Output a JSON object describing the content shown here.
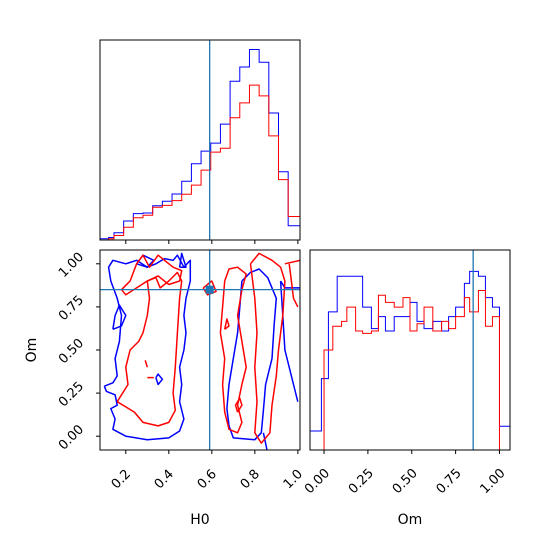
{
  "chart_data": [
    {
      "panel": "H0 marginal",
      "type": "histogram",
      "x_range": [
        0.08,
        1.01
      ],
      "truth": 0.59,
      "series": [
        {
          "color": "#0000ff",
          "x": [
            0.08,
            0.12,
            0.145,
            0.19,
            0.235,
            0.28,
            0.325,
            0.37,
            0.415,
            0.46,
            0.505,
            0.55,
            0.595,
            0.64,
            0.685,
            0.73,
            0.775,
            0.82,
            0.865,
            0.91,
            0.955,
            1.01
          ],
          "y": [
            0.4,
            0.8,
            2.3,
            6.0,
            8.3,
            8.5,
            10.8,
            12.2,
            14.5,
            18.5,
            24.0,
            28.0,
            30.5,
            36.5,
            50.0,
            54.5,
            60.0,
            56.0,
            40.0,
            21.5,
            4.5
          ]
        },
        {
          "color": "#ff0000",
          "x": [
            0.08,
            0.12,
            0.145,
            0.19,
            0.235,
            0.28,
            0.325,
            0.37,
            0.415,
            0.46,
            0.505,
            0.55,
            0.595,
            0.64,
            0.685,
            0.73,
            0.775,
            0.82,
            0.865,
            0.91,
            0.955,
            1.01
          ],
          "y": [
            0.0,
            0.4,
            1.4,
            4.0,
            7.0,
            7.8,
            10.3,
            10.9,
            12.4,
            14.4,
            17.3,
            22.0,
            27.7,
            28.9,
            38.5,
            43.2,
            48.8,
            45.4,
            32.8,
            19.0,
            7.4
          ]
        }
      ]
    },
    {
      "panel": "H0 vs Om",
      "type": "contour",
      "x_range": [
        0.08,
        1.01
      ],
      "y_range": [
        -0.08,
        1.08
      ],
      "truth": {
        "x": 0.59,
        "y": 0.85
      },
      "series": [
        {
          "color": "#0000ff",
          "contours": [
            [
              [
                0.1,
                0.29
              ],
              [
                0.14,
                0.31
              ],
              [
                0.16,
                0.35
              ],
              [
                0.15,
                0.45
              ],
              [
                0.17,
                0.55
              ],
              [
                0.18,
                0.7
              ],
              [
                0.16,
                0.8
              ],
              [
                0.13,
                0.9
              ],
              [
                0.12,
                0.98
              ],
              [
                0.14,
                1.02
              ],
              [
                0.2,
                1.0
              ],
              [
                0.25,
                1.02
              ],
              [
                0.3,
                0.98
              ],
              [
                0.34,
                1.0
              ],
              [
                0.38,
                1.03
              ],
              [
                0.42,
                1.02
              ],
              [
                0.44,
                1.05
              ],
              [
                0.47,
                0.98
              ],
              [
                0.5,
                1.02
              ],
              [
                0.5,
                0.9
              ],
              [
                0.48,
                0.8
              ],
              [
                0.47,
                0.7
              ],
              [
                0.48,
                0.6
              ],
              [
                0.47,
                0.5
              ],
              [
                0.45,
                0.4
              ],
              [
                0.46,
                0.3
              ],
              [
                0.45,
                0.2
              ],
              [
                0.47,
                0.1
              ],
              [
                0.45,
                0.03
              ],
              [
                0.4,
                -0.01
              ],
              [
                0.3,
                -0.02
              ],
              [
                0.2,
                0.0
              ],
              [
                0.14,
                0.04
              ],
              [
                0.15,
                0.1
              ],
              [
                0.13,
                0.16
              ],
              [
                0.16,
                0.18
              ],
              [
                0.15,
                0.24
              ],
              [
                0.11,
                0.26
              ],
              [
                0.1,
                0.29
              ]
            ],
            [
              [
                0.14,
                0.62
              ],
              [
                0.18,
                0.64
              ],
              [
                0.2,
                0.7
              ],
              [
                0.17,
                0.76
              ],
              [
                0.15,
                0.7
              ],
              [
                0.14,
                0.62
              ]
            ],
            [
              [
                0.34,
                0.34
              ],
              [
                0.35,
                0.3
              ],
              [
                0.37,
                0.33
              ],
              [
                0.35,
                0.36
              ],
              [
                0.34,
                0.34
              ]
            ],
            [
              [
                0.25,
                1.0
              ],
              [
                0.28,
                1.05
              ],
              [
                0.33,
                1.02
              ],
              [
                0.3,
                0.98
              ],
              [
                0.25,
                1.0
              ]
            ],
            [
              [
                0.45,
                0.98
              ],
              [
                0.46,
                1.06
              ],
              [
                0.48,
                0.98
              ],
              [
                0.45,
                0.98
              ]
            ],
            [
              [
                0.74,
                0.9
              ],
              [
                0.78,
                0.95
              ],
              [
                0.82,
                0.97
              ],
              [
                0.86,
                0.92
              ],
              [
                0.9,
                0.8
              ],
              [
                0.89,
                0.65
              ],
              [
                0.88,
                0.45
              ],
              [
                0.85,
                0.3
              ],
              [
                0.84,
                0.15
              ],
              [
                0.83,
                0.02
              ],
              [
                0.8,
                -0.02
              ],
              [
                0.7,
                -0.01
              ],
              [
                0.68,
                0.06
              ],
              [
                0.67,
                0.16
              ],
              [
                0.68,
                0.3
              ],
              [
                0.7,
                0.45
              ],
              [
                0.72,
                0.6
              ],
              [
                0.73,
                0.75
              ],
              [
                0.74,
                0.9
              ]
            ],
            [
              [
                0.84,
                0.02
              ],
              [
                0.86,
                -0.1
              ]
            ],
            [
              [
                0.92,
                0.9
              ],
              [
                0.94,
                0.86
              ],
              [
                1.01,
                0.86
              ]
            ],
            [
              [
                0.92,
                0.9
              ],
              [
                0.93,
                0.7
              ],
              [
                0.94,
                0.5
              ],
              [
                0.96,
                0.4
              ],
              [
                0.98,
                0.3
              ],
              [
                1.0,
                0.2
              ]
            ]
          ]
        },
        {
          "color": "#ff0000",
          "contours": [
            [
              [
                0.16,
                0.2
              ],
              [
                0.21,
                0.3
              ],
              [
                0.2,
                0.4
              ],
              [
                0.22,
                0.5
              ],
              [
                0.26,
                0.55
              ],
              [
                0.28,
                0.6
              ],
              [
                0.3,
                0.7
              ],
              [
                0.31,
                0.8
              ],
              [
                0.3,
                0.9
              ],
              [
                0.34,
                0.92
              ],
              [
                0.36,
                0.86
              ],
              [
                0.4,
                0.9
              ],
              [
                0.44,
                0.95
              ],
              [
                0.46,
                0.9
              ],
              [
                0.45,
                0.8
              ],
              [
                0.44,
                0.6
              ],
              [
                0.43,
                0.4
              ],
              [
                0.42,
                0.25
              ],
              [
                0.43,
                0.15
              ],
              [
                0.4,
                0.08
              ],
              [
                0.35,
                0.06
              ],
              [
                0.28,
                0.08
              ],
              [
                0.24,
                0.14
              ],
              [
                0.2,
                0.17
              ],
              [
                0.16,
                0.2
              ]
            ],
            [
              [
                0.18,
                0.85
              ],
              [
                0.22,
                0.9
              ],
              [
                0.25,
                1.0
              ],
              [
                0.28,
                1.05
              ],
              [
                0.31,
                0.98
              ],
              [
                0.35,
                1.05
              ],
              [
                0.38,
                1.02
              ],
              [
                0.42,
                0.98
              ],
              [
                0.46,
                0.96
              ],
              [
                0.45,
                0.9
              ],
              [
                0.4,
                0.88
              ],
              [
                0.35,
                0.93
              ],
              [
                0.3,
                0.9
              ],
              [
                0.25,
                0.86
              ],
              [
                0.2,
                0.82
              ],
              [
                0.18,
                0.85
              ]
            ],
            [
              [
                0.29,
                0.44
              ],
              [
                0.3,
                0.4
              ]
            ],
            [
              [
                0.3,
                0.34
              ],
              [
                0.33,
                0.34
              ]
            ],
            [
              [
                0.56,
                0.86
              ],
              [
                0.6,
                0.9
              ],
              [
                0.62,
                0.84
              ],
              [
                0.58,
                0.82
              ],
              [
                0.56,
                0.86
              ]
            ],
            [
              [
                0.66,
                0.9
              ],
              [
                0.68,
                0.97
              ],
              [
                0.72,
                0.98
              ],
              [
                0.76,
                0.94
              ],
              [
                0.74,
                0.85
              ],
              [
                0.72,
                0.7
              ],
              [
                0.74,
                0.55
              ],
              [
                0.76,
                0.4
              ],
              [
                0.74,
                0.3
              ],
              [
                0.72,
                0.18
              ],
              [
                0.74,
                0.08
              ],
              [
                0.72,
                0.02
              ],
              [
                0.68,
                0.04
              ],
              [
                0.66,
                0.14
              ],
              [
                0.65,
                0.3
              ],
              [
                0.66,
                0.45
              ],
              [
                0.64,
                0.6
              ],
              [
                0.65,
                0.75
              ],
              [
                0.66,
                0.9
              ]
            ],
            [
              [
                0.72,
                0.14
              ],
              [
                0.74,
                0.18
              ],
              [
                0.73,
                0.22
              ],
              [
                0.71,
                0.18
              ],
              [
                0.72,
                0.14
              ]
            ],
            [
              [
                0.66,
                0.62
              ],
              [
                0.68,
                0.64
              ],
              [
                0.67,
                0.68
              ],
              [
                0.66,
                0.62
              ]
            ],
            [
              [
                0.78,
                1.0
              ],
              [
                0.82,
                1.06
              ],
              [
                0.88,
                1.02
              ],
              [
                0.92,
                0.98
              ],
              [
                0.94,
                0.9
              ],
              [
                0.93,
                0.7
              ],
              [
                0.91,
                0.5
              ],
              [
                0.9,
                0.35
              ],
              [
                0.88,
                0.18
              ],
              [
                0.87,
                0.02
              ],
              [
                0.83,
                -0.04
              ],
              [
                0.8,
                0.02
              ],
              [
                0.81,
                0.2
              ],
              [
                0.8,
                0.4
              ],
              [
                0.81,
                0.6
              ],
              [
                0.8,
                0.8
              ],
              [
                0.78,
                1.0
              ]
            ],
            [
              [
                0.94,
                1.0
              ],
              [
                1.01,
                1.02
              ]
            ],
            [
              [
                0.96,
                1.0
              ],
              [
                0.97,
                0.9
              ],
              [
                0.98,
                0.8
              ],
              [
                1.0,
                0.75
              ]
            ]
          ]
        }
      ],
      "xlabel": "H0",
      "ylabel": "Om",
      "xticks": [
        "0.2",
        "0.4",
        "0.6",
        "0.8",
        "1.0"
      ],
      "yticks": [
        "0.00",
        "0.25",
        "0.50",
        "0.75",
        "1.00"
      ]
    },
    {
      "panel": "Om marginal",
      "type": "histogram",
      "x_range": [
        -0.08,
        1.06
      ],
      "truth": 0.85,
      "series": [
        {
          "color": "#0000ff",
          "x": [
            -0.08,
            -0.015,
            0.025,
            0.075,
            0.1,
            0.13,
            0.18,
            0.22,
            0.27,
            0.31,
            0.35,
            0.4,
            0.45,
            0.49,
            0.53,
            0.57,
            0.62,
            0.67,
            0.71,
            0.75,
            0.8,
            0.83,
            0.88,
            0.92,
            0.96,
            1.0,
            1.06
          ],
          "y": [
            4.0,
            15.0,
            29.0,
            36.5,
            36.5,
            36.5,
            36.5,
            30.0,
            25.5,
            28.0,
            25.0,
            28.0,
            28.0,
            31.0,
            27.0,
            25.5,
            27.0,
            25.0,
            28.0,
            30.0,
            35.0,
            37.5,
            36.5,
            32.0,
            30.0,
            5.0
          ]
        },
        {
          "color": "#ff0000",
          "x": [
            0.0,
            0.05,
            0.075,
            0.1,
            0.13,
            0.18,
            0.22,
            0.27,
            0.31,
            0.35,
            0.4,
            0.45,
            0.49,
            0.53,
            0.57,
            0.62,
            0.67,
            0.71,
            0.75,
            0.8,
            0.83,
            0.88,
            0.92,
            0.96,
            1.0
          ],
          "y": [
            21.0,
            26.0,
            26.0,
            27.0,
            30.0,
            25.0,
            24.5,
            25.0,
            32.5,
            31.0,
            30.0,
            32.0,
            25.0,
            26.5,
            30.0,
            25.0,
            27.0,
            25.5,
            28.0,
            32.0,
            29.0,
            33.5,
            26.0,
            28.0
          ]
        }
      ],
      "xlabel": "Om",
      "xticks": [
        "0.00",
        "0.25",
        "0.50",
        "0.75",
        "1.00"
      ]
    }
  ],
  "styles": {
    "truth_color": "#1f77b4",
    "blue": "#0000ff",
    "red": "#ff0000"
  }
}
